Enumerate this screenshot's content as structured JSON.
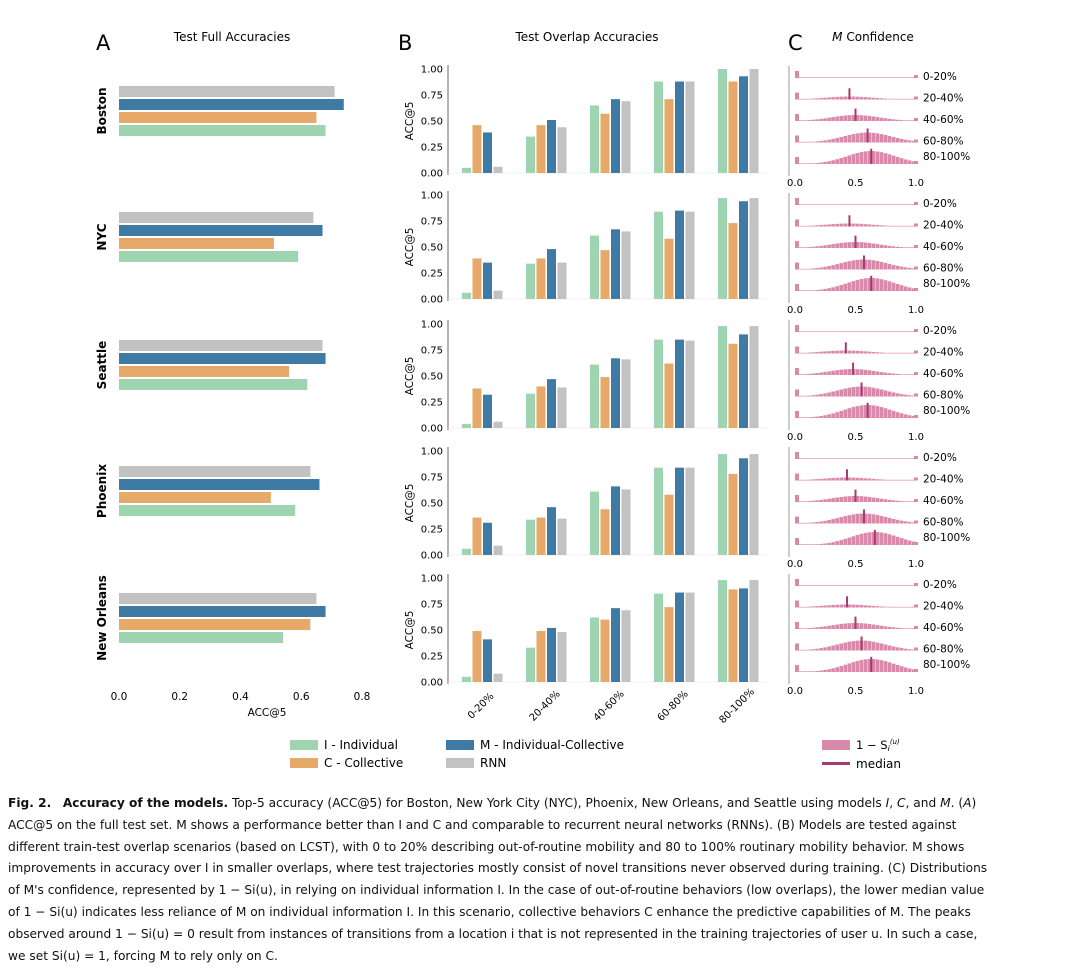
{
  "chart_data": [
    {
      "panel": "A",
      "type": "bar",
      "orientation": "horizontal",
      "title": "Test Full Accuracies",
      "xlabel": "ACC@5",
      "xlim": [
        0,
        0.8
      ],
      "xticks": [
        "0.0",
        "0.2",
        "0.4",
        "0.6",
        "0.8"
      ],
      "cities": [
        "Boston",
        "NYC",
        "Seattle",
        "Phoenix",
        "New Orleans"
      ],
      "series": [
        {
          "key": "RNN",
          "values": [
            0.71,
            0.64,
            0.67,
            0.63,
            0.65
          ]
        },
        {
          "key": "M",
          "values": [
            0.74,
            0.67,
            0.68,
            0.66,
            0.68
          ]
        },
        {
          "key": "C",
          "values": [
            0.65,
            0.51,
            0.56,
            0.5,
            0.63
          ]
        },
        {
          "key": "I",
          "values": [
            0.68,
            0.59,
            0.62,
            0.58,
            0.54
          ]
        }
      ]
    },
    {
      "panel": "B",
      "type": "bar",
      "title": "Test Overlap Accuracies",
      "ylabel": "ACC@5",
      "ylim": [
        0,
        1
      ],
      "yticks": [
        "0.00",
        "0.25",
        "0.50",
        "0.75",
        "1.00"
      ],
      "categories": [
        "0-20%",
        "20-40%",
        "40-60%",
        "60-80%",
        "80-100%"
      ],
      "rows": [
        {
          "city": "Boston",
          "I": [
            0.05,
            0.35,
            0.65,
            0.88,
            1.0
          ],
          "C": [
            0.46,
            0.46,
            0.57,
            0.71,
            0.88
          ],
          "M": [
            0.39,
            0.51,
            0.71,
            0.88,
            0.93
          ],
          "RNN": [
            0.06,
            0.44,
            0.69,
            0.88,
            1.0
          ]
        },
        {
          "city": "NYC",
          "I": [
            0.06,
            0.34,
            0.61,
            0.84,
            0.97
          ],
          "C": [
            0.39,
            0.39,
            0.47,
            0.58,
            0.73
          ],
          "M": [
            0.35,
            0.48,
            0.67,
            0.85,
            0.94
          ],
          "RNN": [
            0.08,
            0.35,
            0.65,
            0.84,
            0.97
          ]
        },
        {
          "city": "Seattle",
          "I": [
            0.04,
            0.33,
            0.61,
            0.85,
            0.98
          ],
          "C": [
            0.38,
            0.4,
            0.49,
            0.62,
            0.81
          ],
          "M": [
            0.32,
            0.47,
            0.67,
            0.85,
            0.9
          ],
          "RNN": [
            0.06,
            0.39,
            0.66,
            0.84,
            0.98
          ]
        },
        {
          "city": "Phoenix",
          "I": [
            0.06,
            0.34,
            0.61,
            0.84,
            0.97
          ],
          "C": [
            0.36,
            0.36,
            0.44,
            0.58,
            0.78
          ],
          "M": [
            0.31,
            0.46,
            0.66,
            0.84,
            0.93
          ],
          "RNN": [
            0.09,
            0.35,
            0.63,
            0.84,
            0.97
          ]
        },
        {
          "city": "New Orleans",
          "I": [
            0.05,
            0.33,
            0.62,
            0.85,
            0.98
          ],
          "C": [
            0.49,
            0.49,
            0.6,
            0.72,
            0.89
          ],
          "M": [
            0.41,
            0.52,
            0.71,
            0.86,
            0.9
          ],
          "RNN": [
            0.08,
            0.48,
            0.69,
            0.86,
            0.98
          ]
        }
      ]
    },
    {
      "panel": "C",
      "type": "histogram",
      "title_italic": "M",
      "title_rest": " Confidence",
      "xlim": [
        0,
        1
      ],
      "xticks": [
        "0.0",
        "0.5",
        "1.0"
      ],
      "overlap_labels": [
        "0-20%",
        "20-40%",
        "40-60%",
        "60-80%",
        "80-100%"
      ],
      "medians": [
        [
          0.0,
          0.45,
          0.5,
          0.6,
          0.63
        ],
        [
          0.0,
          0.45,
          0.5,
          0.57,
          0.63
        ],
        [
          0.0,
          0.42,
          0.48,
          0.55,
          0.6
        ],
        [
          0.0,
          0.43,
          0.5,
          0.57,
          0.66
        ],
        [
          0.0,
          0.43,
          0.5,
          0.55,
          0.63
        ]
      ],
      "peak_heights": [
        0.05,
        0.15,
        0.3,
        0.5,
        0.65
      ]
    }
  ],
  "panel_letters": [
    "A",
    "B",
    "C"
  ],
  "legend": {
    "I": "I - Individual",
    "C": "C - Collective",
    "M": "M - Individual-Collective",
    "RNN": "RNN",
    "conf": "1 − Si(u)",
    "median": "median"
  },
  "colors": {
    "I": "#9fd4b1",
    "C": "#e7a96a",
    "M": "#3f7aa4",
    "RNN": "#c2c2c2",
    "hist": "#d98aab",
    "median": "#a83a70"
  },
  "caption": {
    "fig": "Fig. 2.",
    "title": "Accuracy of the models.",
    "text1": " Top-5 accuracy (ACC@5) for Boston, New York City (NYC), Phoenix, New Orleans, and Seattle using models ",
    "text2": "ACC@5 on the full test set. M shows a performance better than I and C and comparable to recurrent neural networks (RNNs). (B) Models are tested against",
    "text3": "different train-test overlap scenarios (based on LCST), with 0 to 20% describing out-of-routine mobility and 80 to 100% routinary mobility behavior. M shows",
    "text4": "improvements in accuracy over I in smaller overlaps, where test trajectories mostly consist of novel transitions never observed during training. (C) Distributions",
    "text5": "of M's confidence, represented by 1 − Si(u), in relying on individual information I. In the case of out-of-routine behaviors (low overlaps), the lower median value",
    "text6": "of 1 − Si(u) indicates less reliance of M on individual information I. In this scenario, collective behaviors C enhance the predictive capabilities of M. The peaks",
    "text7": "observed around 1 − Si(u) = 0 result from instances of transitions from a location i that is not represented in the training trajectories of user u. In such a case,",
    "text8": "we set Si(u) = 1, forcing M to rely only on C."
  }
}
